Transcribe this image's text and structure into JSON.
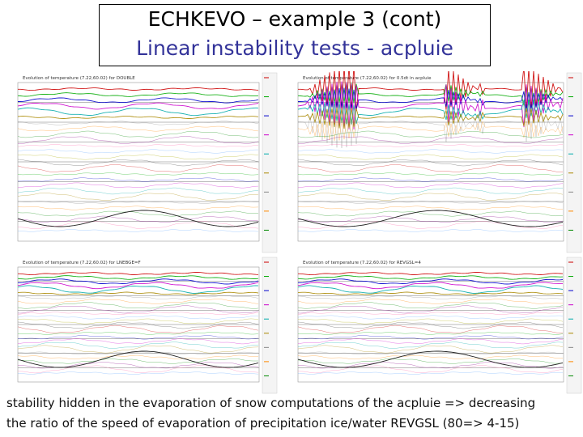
{
  "header": {
    "title": "ECHKEVO – example 3 (cont)",
    "subtitle": "Linear instability tests - acpluie"
  },
  "panels": [
    {
      "title": "Evolution of temperature (7.22,60.02) for DOUBLE"
    },
    {
      "title": "Evolution of temperature (7.22,60.02) for 0.5dt in acpluie"
    },
    {
      "title": "Evolution of temperature (7.22,60.02) for LNEBGE=F"
    },
    {
      "title": "Evolution of temperature (7.22,60.02) for REVGSL=4"
    }
  ],
  "caption": {
    "line1": "stability hidden in the evaporation of snow computations of the acpluie => decreasing",
    "line2": "the ratio of the speed of evaporation of precipitation ice/water REVGSL (80=> 4-15)"
  }
}
